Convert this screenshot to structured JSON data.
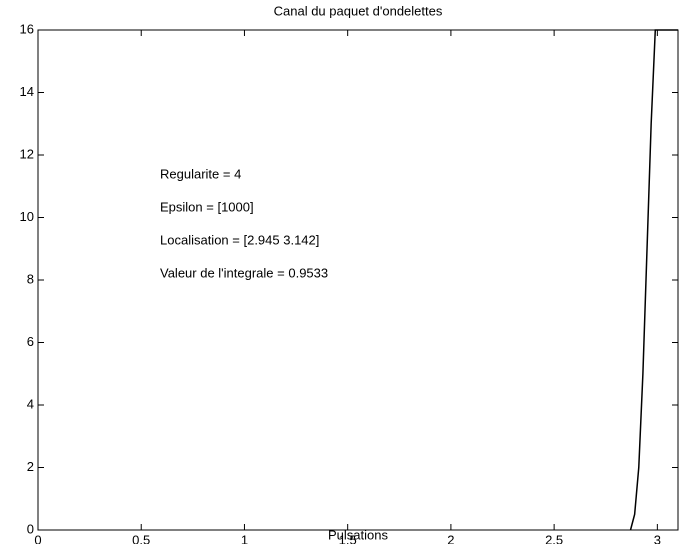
{
  "chart_data": {
    "type": "line",
    "title": "Canal du paquet d'ondelettes",
    "xlabel": "Pulsations",
    "annotations": [
      "Regularite = 4",
      "Epsilon = [1000]",
      "Localisation = [2.945 3.142]",
      "Valeur de l'integrale = 0.9533"
    ],
    "x": [
      2.87,
      2.89,
      2.91,
      2.93,
      2.95,
      2.97,
      2.99,
      3.1
    ],
    "series": [
      {
        "color": "#000000",
        "values": [
          0,
          0.5,
          2,
          5,
          9,
          13,
          16,
          16
        ]
      }
    ],
    "xlim": [
      0,
      3.1
    ],
    "xticks": [
      0,
      0.5,
      1,
      1.5,
      2,
      2.5,
      3
    ],
    "ylim": [
      0,
      16
    ],
    "yticks": [
      0,
      2,
      4,
      6,
      8,
      10,
      12,
      14,
      16
    ]
  }
}
